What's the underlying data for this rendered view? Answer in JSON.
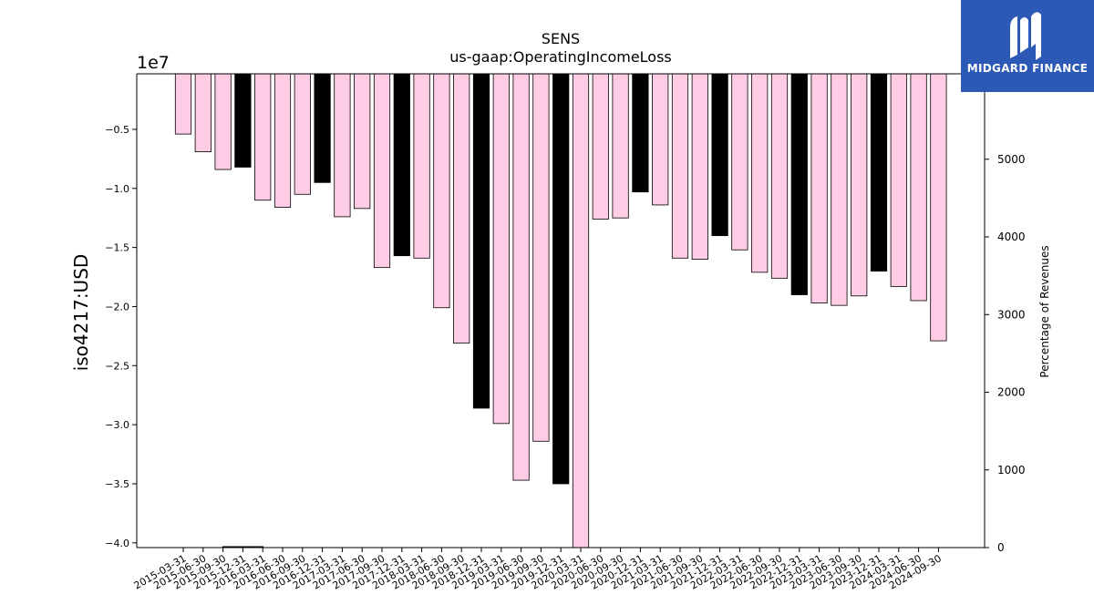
{
  "chart_data": {
    "type": "bar",
    "title": "SENS",
    "subtitle": "us-gaap:OperatingIncomeLoss",
    "ylabel": "iso4217:USD",
    "y_offset_label": "1e7",
    "y2label": "Percentage of Revenues",
    "ylim": [
      -40400000.0,
      -300000.0
    ],
    "y_ticks": [
      -0.5,
      -1.0,
      -1.5,
      -2.0,
      -2.5,
      -3.0,
      -3.5,
      -4.0
    ],
    "y_tick_labels": [
      "−0.5",
      "−1.0",
      "−1.5",
      "−2.0",
      "−2.5",
      "−3.0",
      "−3.5",
      "−4.0"
    ],
    "y2lim": [
      0,
      6100
    ],
    "y2_ticks": [
      0,
      1000,
      2000,
      3000,
      4000,
      5000
    ],
    "y2_tick_labels": [
      "0",
      "1000",
      "2000",
      "3000",
      "4000",
      "5000"
    ],
    "categories": [
      "2015-03-31",
      "2015-06-30",
      "2015-09-30",
      "2015-12-31",
      "2016-03-31",
      "2016-06-30",
      "2016-09-30",
      "2016-12-31",
      "2017-03-31",
      "2017-06-30",
      "2017-09-30",
      "2017-12-31",
      "2018-03-31",
      "2018-06-30",
      "2018-09-30",
      "2018-12-31",
      "2019-03-31",
      "2019-06-30",
      "2019-09-30",
      "2019-12-31",
      "2020-03-31",
      "2020-06-30",
      "2020-09-30",
      "2020-12-31",
      "2021-03-31",
      "2021-06-30",
      "2021-09-30",
      "2021-12-31",
      "2022-03-31",
      "2022-06-30",
      "2022-09-30",
      "2022-12-31",
      "2023-03-31",
      "2023-06-30",
      "2023-09-30",
      "2023-12-31",
      "2024-03-31",
      "2024-06-30",
      "2024-09-30"
    ],
    "series": [
      {
        "values": [
          -5400000,
          -6900000,
          -8400000,
          -8200000,
          -11000000,
          -11600000,
          -10500000,
          -9500000,
          -12400000,
          -11700000,
          -16700000,
          -15700000,
          -15900000,
          -20100000,
          -23100000,
          -28600000,
          -29900000,
          -34700000,
          -31400000,
          -35000000,
          -40400000,
          -12600000,
          -12500000,
          -10300000,
          -11400000,
          -15900000,
          -16000000,
          -14000000,
          -15200000,
          -17100000,
          -17600000,
          -19000000,
          -19700000,
          -19900000,
          -19100000,
          -17000000,
          -18300000,
          -19500000,
          -22900000
        ]
      },
      {
        "values": [
          null,
          null,
          null,
          5,
          null,
          null,
          null,
          null,
          null,
          null,
          null,
          null,
          null,
          null,
          null,
          null,
          null,
          null,
          null,
          null,
          null,
          null,
          null,
          null,
          null,
          null,
          null,
          null,
          null,
          null,
          null,
          null,
          null,
          null,
          null,
          null,
          null,
          null,
          null
        ]
      }
    ],
    "bar_colors": [
      "#ffcce6",
      "#ffcce6",
      "#ffcce6",
      "#000000",
      "#ffcce6",
      "#ffcce6",
      "#ffcce6",
      "#000000",
      "#ffcce6",
      "#ffcce6",
      "#ffcce6",
      "#000000",
      "#ffcce6",
      "#ffcce6",
      "#ffcce6",
      "#000000",
      "#ffcce6",
      "#ffcce6",
      "#ffcce6",
      "#000000",
      "#ffcce6",
      "#ffcce6",
      "#ffcce6",
      "#000000",
      "#ffcce6",
      "#ffcce6",
      "#ffcce6",
      "#000000",
      "#ffcce6",
      "#ffcce6",
      "#ffcce6",
      "#000000",
      "#ffcce6",
      "#ffcce6",
      "#ffcce6",
      "#000000",
      "#ffcce6",
      "#ffcce6",
      "#ffcce6"
    ],
    "grid": false,
    "legend": "none"
  },
  "logo": {
    "text": "MIDGARD FINANCE",
    "icon": "midgard-logo-icon",
    "color": "#2b59b5"
  }
}
